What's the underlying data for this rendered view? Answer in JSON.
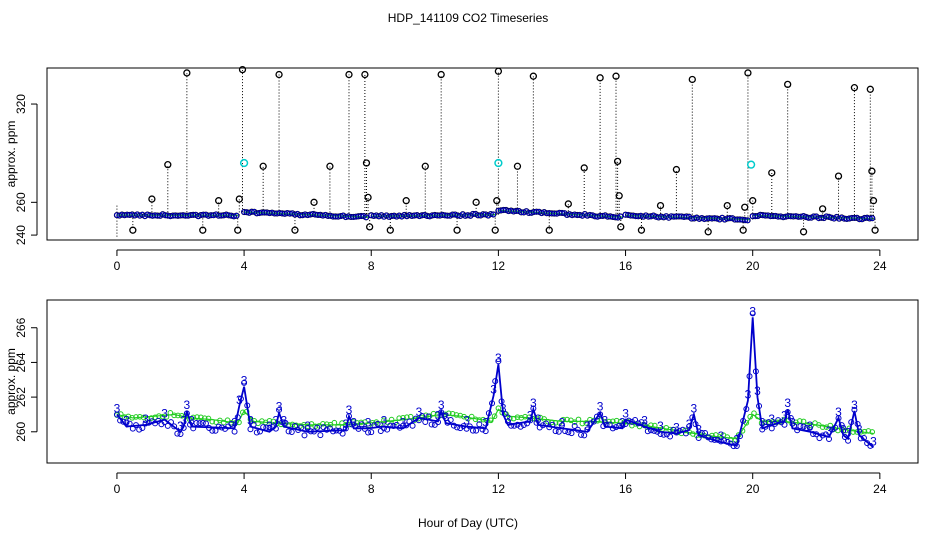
{
  "title": "HDP_141109  CO2 Timeseries",
  "xlabel": "Hour of Day (UTC)",
  "colors": {
    "raw": "#000000",
    "flagged": "#00cccc",
    "mean": "#0000cc",
    "smooth": "#22cc22"
  },
  "chart_data": [
    {
      "type": "scatter",
      "ylabel": "approx. ppm",
      "xlim": [
        -2.2,
        25.2
      ],
      "ylim": [
        237,
        342
      ],
      "xticks": [
        0,
        4,
        8,
        12,
        16,
        20,
        24
      ],
      "yticks": [
        240,
        260,
        320
      ],
      "series": [
        {
          "name": "baseline",
          "segments": [
            {
              "x0": 0.0,
              "x1": 3.8,
              "y0": 252.2,
              "y1": 252.0
            },
            {
              "x0": 4.0,
              "x1": 7.9,
              "y0": 254.0,
              "y1": 251.0
            },
            {
              "x0": 8.0,
              "x1": 11.9,
              "y0": 251.5,
              "y1": 252.5
            },
            {
              "x0": 12.0,
              "x1": 15.9,
              "y0": 255.0,
              "y1": 251.0
            },
            {
              "x0": 16.0,
              "x1": 19.9,
              "y0": 252.0,
              "y1": 249.5
            },
            {
              "x0": 20.0,
              "x1": 23.8,
              "y0": 252.0,
              "y1": 250.0
            }
          ]
        },
        {
          "name": "spikes",
          "points": [
            [
              0.5,
              243
            ],
            [
              1.1,
              262
            ],
            [
              1.6,
              283
            ],
            [
              2.2,
              339
            ],
            [
              2.7,
              243
            ],
            [
              3.2,
              261
            ],
            [
              3.8,
              243
            ],
            [
              3.85,
              262
            ],
            [
              3.95,
              341
            ],
            [
              4.6,
              282
            ],
            [
              5.1,
              338
            ],
            [
              5.6,
              243
            ],
            [
              6.2,
              260
            ],
            [
              6.7,
              282
            ],
            [
              7.3,
              338
            ],
            [
              7.8,
              338
            ],
            [
              7.85,
              284
            ],
            [
              7.9,
              263
            ],
            [
              7.95,
              245
            ],
            [
              8.6,
              243
            ],
            [
              9.1,
              261
            ],
            [
              9.7,
              282
            ],
            [
              10.2,
              338
            ],
            [
              10.7,
              243
            ],
            [
              11.3,
              260
            ],
            [
              11.9,
              243
            ],
            [
              11.95,
              261
            ],
            [
              12.0,
              340
            ],
            [
              12.6,
              282
            ],
            [
              13.1,
              337
            ],
            [
              13.6,
              243
            ],
            [
              14.2,
              259
            ],
            [
              14.7,
              281
            ],
            [
              15.2,
              336
            ],
            [
              15.7,
              337
            ],
            [
              15.75,
              285
            ],
            [
              15.8,
              264
            ],
            [
              15.85,
              245
            ],
            [
              16.5,
              243
            ],
            [
              17.1,
              258
            ],
            [
              17.6,
              280
            ],
            [
              18.1,
              335
            ],
            [
              18.6,
              242
            ],
            [
              19.2,
              258
            ],
            [
              19.7,
              243
            ],
            [
              19.75,
              257
            ],
            [
              19.85,
              339
            ],
            [
              20.0,
              261
            ],
            [
              20.6,
              278
            ],
            [
              21.1,
              332
            ],
            [
              21.6,
              242
            ],
            [
              22.2,
              256
            ],
            [
              22.7,
              276
            ],
            [
              23.2,
              330
            ],
            [
              23.7,
              329
            ],
            [
              23.75,
              279
            ],
            [
              23.8,
              261
            ],
            [
              23.85,
              243
            ]
          ]
        },
        {
          "name": "flagged",
          "points": [
            [
              4.0,
              284
            ],
            [
              12.0,
              284
            ],
            [
              19.95,
              283
            ]
          ]
        }
      ]
    },
    {
      "type": "line",
      "ylabel": "approx. ppm",
      "xlim": [
        -2.2,
        25.2
      ],
      "ylim": [
        258.2,
        267.6
      ],
      "xticks": [
        0,
        4,
        8,
        12,
        16,
        20,
        24
      ],
      "yticks": [
        260,
        262,
        264,
        266
      ],
      "series": [
        {
          "name": "mean",
          "marker": "3",
          "anchors": [
            [
              0.0,
              261.0
            ],
            [
              0.3,
              260.3
            ],
            [
              0.9,
              260.4
            ],
            [
              1.5,
              260.7
            ],
            [
              2.0,
              260.0
            ],
            [
              2.1,
              260.3
            ],
            [
              2.2,
              261.2
            ],
            [
              2.35,
              260.3
            ],
            [
              3.7,
              260.2
            ],
            [
              3.85,
              261.5
            ],
            [
              4.0,
              262.6
            ],
            [
              4.2,
              260.3
            ],
            [
              4.8,
              260.0
            ],
            [
              5.0,
              260.3
            ],
            [
              5.1,
              261.1
            ],
            [
              5.25,
              260.3
            ],
            [
              6.0,
              260.0
            ],
            [
              7.2,
              260.1
            ],
            [
              7.3,
              260.9
            ],
            [
              7.45,
              260.2
            ],
            [
              7.9,
              260.2
            ],
            [
              8.4,
              260.3
            ],
            [
              9.0,
              260.2
            ],
            [
              9.5,
              260.8
            ],
            [
              10.1,
              260.6
            ],
            [
              10.2,
              261.2
            ],
            [
              10.35,
              260.5
            ],
            [
              11.0,
              260.3
            ],
            [
              11.6,
              260.2
            ],
            [
              11.85,
              262.1
            ],
            [
              12.0,
              263.9
            ],
            [
              12.15,
              261.0
            ],
            [
              12.3,
              260.4
            ],
            [
              13.0,
              260.6
            ],
            [
              13.1,
              261.3
            ],
            [
              13.25,
              260.4
            ],
            [
              14.0,
              260.2
            ],
            [
              14.8,
              260.0
            ],
            [
              15.2,
              261.1
            ],
            [
              15.35,
              260.3
            ],
            [
              15.9,
              260.2
            ],
            [
              16.0,
              260.7
            ],
            [
              16.6,
              260.3
            ],
            [
              17.1,
              260.0
            ],
            [
              17.6,
              259.9
            ],
            [
              18.0,
              260.1
            ],
            [
              18.15,
              261.0
            ],
            [
              18.3,
              259.8
            ],
            [
              19.0,
              259.4
            ],
            [
              19.5,
              259.2
            ],
            [
              19.85,
              261.8
            ],
            [
              20.0,
              266.6
            ],
            [
              20.15,
              262.0
            ],
            [
              20.3,
              260.2
            ],
            [
              20.6,
              260.4
            ],
            [
              21.0,
              260.6
            ],
            [
              21.1,
              261.3
            ],
            [
              21.25,
              260.2
            ],
            [
              21.8,
              260.0
            ],
            [
              22.4,
              259.7
            ],
            [
              22.7,
              260.8
            ],
            [
              22.85,
              259.8
            ],
            [
              23.0,
              259.6
            ],
            [
              23.2,
              261.2
            ],
            [
              23.35,
              259.8
            ],
            [
              23.8,
              259.1
            ]
          ]
        },
        {
          "name": "smooth",
          "marker": "o",
          "anchors": [
            [
              0.0,
              261.0
            ],
            [
              0.5,
              260.8
            ],
            [
              1.2,
              260.9
            ],
            [
              1.8,
              261.0
            ],
            [
              2.3,
              260.8
            ],
            [
              3.0,
              260.7
            ],
            [
              3.8,
              260.5
            ],
            [
              4.0,
              261.2
            ],
            [
              4.3,
              260.6
            ],
            [
              5.0,
              260.5
            ],
            [
              6.0,
              260.4
            ],
            [
              7.0,
              260.4
            ],
            [
              7.9,
              260.5
            ],
            [
              8.5,
              260.6
            ],
            [
              9.5,
              260.8
            ],
            [
              10.2,
              261.0
            ],
            [
              10.8,
              260.9
            ],
            [
              11.8,
              260.6
            ],
            [
              12.0,
              261.3
            ],
            [
              12.3,
              260.9
            ],
            [
              13.0,
              260.8
            ],
            [
              14.0,
              260.6
            ],
            [
              15.0,
              260.6
            ],
            [
              15.9,
              260.5
            ],
            [
              16.5,
              260.4
            ],
            [
              17.5,
              260.1
            ],
            [
              18.5,
              259.8
            ],
            [
              19.5,
              259.6
            ],
            [
              20.0,
              261.0
            ],
            [
              20.3,
              260.6
            ],
            [
              21.0,
              260.6
            ],
            [
              22.0,
              260.4
            ],
            [
              23.0,
              260.1
            ],
            [
              23.8,
              259.9
            ]
          ]
        }
      ]
    }
  ]
}
